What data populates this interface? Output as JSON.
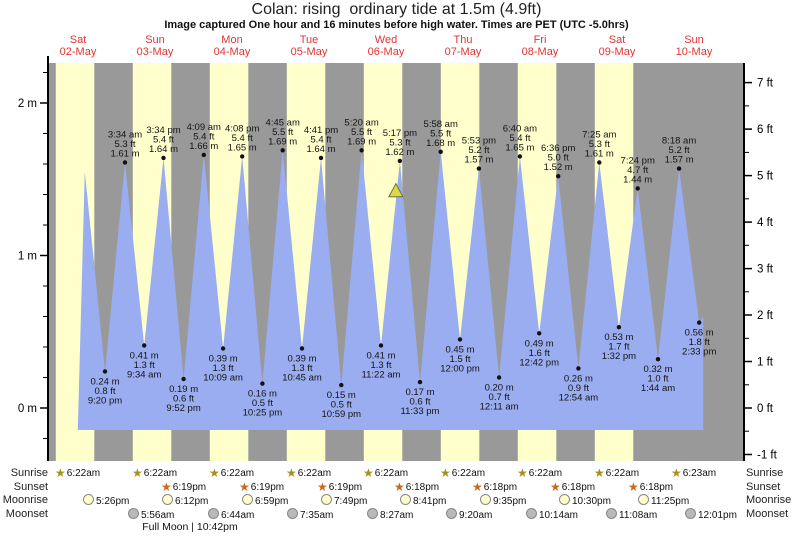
{
  "title": "Colan: rising  ordinary tide at 1.5m (4.9ft)",
  "subtitle": "Image captured One hour and 16 minutes before high water. Times are PET (UTC -5.0hrs)",
  "colors": {
    "day_band": "#ffffcc",
    "night_band": "#999999",
    "water": "#9aadf0",
    "marker": "#dcd94f",
    "marker_stroke": "#70702e",
    "day_label_red": "#e23434",
    "sunrise_star": "#a4921f",
    "sunset_star": "#c86a1c",
    "moonrise_circle": "#ffffcc",
    "moonset_circle": "#b9b9b9"
  },
  "days": [
    {
      "name": "Sat",
      "date": "02-May"
    },
    {
      "name": "Sun",
      "date": "03-May"
    },
    {
      "name": "Mon",
      "date": "04-May"
    },
    {
      "name": "Tue",
      "date": "05-May"
    },
    {
      "name": "Wed",
      "date": "06-May"
    },
    {
      "name": "Thu",
      "date": "07-May"
    },
    {
      "name": "Fri",
      "date": "08-May"
    },
    {
      "name": "Sat",
      "date": "09-May"
    },
    {
      "name": "Sun",
      "date": "10-May"
    }
  ],
  "chart_data": {
    "type": "area",
    "title": "Colan: rising  ordinary tide at 1.5m (4.9ft)",
    "x_axis": "days Sat 02-May through Sun 10-May",
    "ylim_m": [
      -0.35,
      2.27
    ],
    "grid": false,
    "day_band_count": 8,
    "y_left": {
      "unit": "m",
      "ticks": [
        {
          "v": 0,
          "label": "0 m"
        },
        {
          "v": 1,
          "label": "1 m"
        },
        {
          "v": 2,
          "label": "2 m"
        }
      ]
    },
    "y_right": {
      "unit": "ft",
      "ticks": [
        {
          "v": -1,
          "label": "-1 ft"
        },
        {
          "v": 0,
          "label": "0 ft"
        },
        {
          "v": 1,
          "label": "1 ft"
        },
        {
          "v": 2,
          "label": "2 ft"
        },
        {
          "v": 3,
          "label": "3 ft"
        },
        {
          "v": 4,
          "label": "4 ft"
        },
        {
          "v": 5,
          "label": "5 ft"
        },
        {
          "v": 6,
          "label": "6 ft"
        },
        {
          "v": 7,
          "label": "7 ft"
        }
      ]
    },
    "now_marker": {
      "t": 4.667,
      "description": "current time, 1h16m before 5:17 pm high water"
    },
    "tides": [
      {
        "type": "high",
        "t": 0.627,
        "m": 1.55
      },
      {
        "type": "low",
        "t": 0.889,
        "m": 0.24,
        "label_m": "0.24 m",
        "label_ft": "0.8 ft",
        "label_time": "9:20 pm"
      },
      {
        "type": "high",
        "t": 1.149,
        "m": 1.61,
        "label_time": "3:34 am",
        "label_ft": "5.3 ft",
        "label_m": "1.61 m"
      },
      {
        "type": "low",
        "t": 1.399,
        "m": 0.41,
        "label_m": "0.41 m",
        "label_ft": "1.3 ft",
        "label_time": "9:34 am"
      },
      {
        "type": "high",
        "t": 1.649,
        "m": 1.64,
        "label_time": "3:34 pm",
        "label_ft": "5.4 ft",
        "label_m": "1.64 m"
      },
      {
        "type": "low",
        "t": 1.911,
        "m": 0.19,
        "label_m": "0.19 m",
        "label_ft": "0.6 ft",
        "label_time": "9:52 pm"
      },
      {
        "type": "high",
        "t": 2.173,
        "m": 1.66,
        "label_time": "4:09 am",
        "label_ft": "5.4 ft",
        "label_m": "1.66 m"
      },
      {
        "type": "low",
        "t": 2.423,
        "m": 0.39,
        "label_m": "0.39 m",
        "label_ft": "1.3 ft",
        "label_time": "10:09 am"
      },
      {
        "type": "high",
        "t": 2.672,
        "m": 1.65,
        "label_time": "4:08 pm",
        "label_ft": "5.4 ft",
        "label_m": "1.65 m"
      },
      {
        "type": "low",
        "t": 2.934,
        "m": 0.16,
        "label_m": "0.16 m",
        "label_ft": "0.5 ft",
        "label_time": "10:25 pm"
      },
      {
        "type": "high",
        "t": 3.198,
        "m": 1.69,
        "label_time": "4:45 am",
        "label_ft": "5.5 ft",
        "label_m": "1.69 m"
      },
      {
        "type": "low",
        "t": 3.448,
        "m": 0.39,
        "label_m": "0.39 m",
        "label_ft": "1.3 ft",
        "label_time": "10:45 am"
      },
      {
        "type": "high",
        "t": 3.695,
        "m": 1.64,
        "label_time": "4:41 pm",
        "label_ft": "5.4 ft",
        "label_m": "1.64 m"
      },
      {
        "type": "low",
        "t": 3.958,
        "m": 0.15,
        "label_m": "0.15 m",
        "label_ft": "0.5 ft",
        "label_time": "10:59 pm"
      },
      {
        "type": "high",
        "t": 4.222,
        "m": 1.69,
        "label_time": "5:20 am",
        "label_ft": "5.5 ft",
        "label_m": "1.69 m"
      },
      {
        "type": "low",
        "t": 4.474,
        "m": 0.41,
        "label_m": "0.41 m",
        "label_ft": "1.3 ft",
        "label_time": "11:22 am"
      },
      {
        "type": "high",
        "t": 4.72,
        "m": 1.62,
        "label_time": "5:17 pm",
        "label_ft": "5.3 ft",
        "label_m": "1.62 m"
      },
      {
        "type": "low",
        "t": 4.981,
        "m": 0.17,
        "label_m": "0.17 m",
        "label_ft": "0.6 ft",
        "label_time": "11:33 pm"
      },
      {
        "type": "high",
        "t": 5.249,
        "m": 1.68,
        "label_time": "5:58 am",
        "label_ft": "5.5 ft",
        "label_m": "1.68 m"
      },
      {
        "type": "low",
        "t": 5.5,
        "m": 0.45,
        "label_m": "0.45 m",
        "label_ft": "1.5 ft",
        "label_time": "12:00 pm"
      },
      {
        "type": "high",
        "t": 5.745,
        "m": 1.57,
        "label_time": "5:53 pm",
        "label_ft": "5.2 ft",
        "label_m": "1.57 m"
      },
      {
        "type": "low",
        "t": 6.008,
        "m": 0.2,
        "label_m": "0.20 m",
        "label_ft": "0.7 ft",
        "label_time": "12:11 am"
      },
      {
        "type": "high",
        "t": 6.278,
        "m": 1.65,
        "label_time": "6:40 am",
        "label_ft": "5.4 ft",
        "label_m": "1.65 m"
      },
      {
        "type": "low",
        "t": 6.529,
        "m": 0.49,
        "label_m": "0.49 m",
        "label_ft": "1.6 ft",
        "label_time": "12:42 pm"
      },
      {
        "type": "high",
        "t": 6.775,
        "m": 1.52,
        "label_time": "6:36 pm",
        "label_ft": "5.0 ft",
        "label_m": "1.52 m"
      },
      {
        "type": "low",
        "t": 7.038,
        "m": 0.26,
        "label_m": "0.26 m",
        "label_ft": "0.9 ft",
        "label_time": "12:54 am"
      },
      {
        "type": "high",
        "t": 7.309,
        "m": 1.61,
        "label_time": "7:25 am",
        "label_ft": "5.3 ft",
        "label_m": "1.61 m"
      },
      {
        "type": "low",
        "t": 7.564,
        "m": 0.53,
        "label_m": "0.53 m",
        "label_ft": "1.7 ft",
        "label_time": "1:32 pm"
      },
      {
        "type": "high",
        "t": 7.808,
        "m": 1.44,
        "label_time": "7:24 pm",
        "label_ft": "4.7 ft",
        "label_m": "1.44 m"
      },
      {
        "type": "low",
        "t": 8.072,
        "m": 0.32,
        "label_m": "0.32 m",
        "label_ft": "1.0 ft",
        "label_time": "1:44 am"
      },
      {
        "type": "high",
        "t": 8.346,
        "m": 1.57,
        "label_time": "8:18 am",
        "label_ft": "5.2 ft",
        "label_m": "1.57 m"
      },
      {
        "type": "low",
        "t": 8.606,
        "m": 0.56,
        "label_m": "0.56 m",
        "label_ft": "1.8 ft",
        "label_time": "2:33 pm"
      }
    ]
  },
  "sun_moon": {
    "rows": [
      {
        "label": "Sunrise",
        "icon": "star",
        "times": [
          "6:22am",
          "6:22am",
          "6:22am",
          "6:22am",
          "6:22am",
          "6:22am",
          "6:22am",
          "6:22am",
          "6:23am"
        ]
      },
      {
        "label": "Sunset",
        "icon": "star",
        "times": [
          "6:19pm",
          "6:19pm",
          "6:19pm",
          "6:18pm",
          "6:18pm",
          "6:18pm",
          "6:18pm"
        ]
      },
      {
        "label": "Moonrise",
        "icon": "circle",
        "times": [
          "5:26pm",
          "6:12pm",
          "6:59pm",
          "7:49pm",
          "8:41pm",
          "9:35pm",
          "10:30pm",
          "11:25pm"
        ]
      },
      {
        "label": "Moonset",
        "icon": "circle",
        "times": [
          "5:56am",
          "6:44am",
          "7:35am",
          "8:27am",
          "9:20am",
          "10:14am",
          "11:08am",
          "12:01pm"
        ]
      }
    ],
    "footnote": "Full Moon | 10:42pm"
  }
}
